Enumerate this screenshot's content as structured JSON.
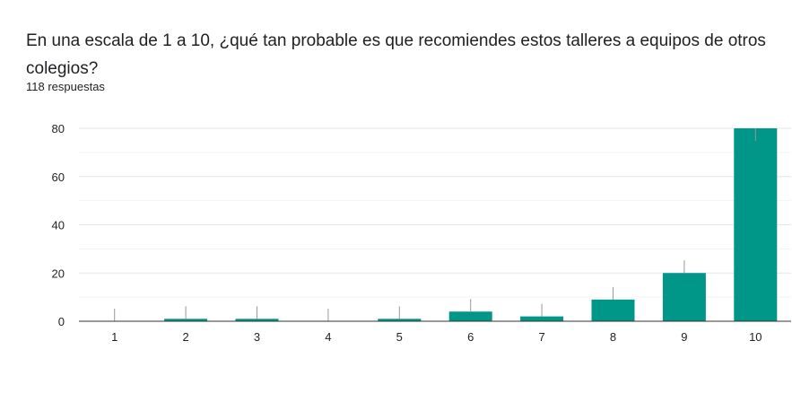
{
  "question": "En una escala de 1 a 10, ¿qué tan probable es que recomiendes estos talleres a equipos de otros colegios?",
  "responses": "118 respuestas",
  "colors": {
    "bar": "#009688",
    "grid": "#e6e6e6",
    "minor_grid": "#f3f3f3",
    "axis": "#333333",
    "leader": "#999999"
  },
  "chart_data": {
    "type": "bar",
    "title": "",
    "xlabel": "",
    "ylabel": "",
    "categories": [
      "1",
      "2",
      "3",
      "4",
      "5",
      "6",
      "7",
      "8",
      "9",
      "10"
    ],
    "values": [
      0,
      1,
      1,
      0,
      1,
      4,
      2,
      9,
      20,
      80
    ],
    "ylim": [
      0,
      80
    ],
    "yticks": [
      0,
      20,
      40,
      60,
      80
    ],
    "grid": true,
    "legend": "none"
  }
}
